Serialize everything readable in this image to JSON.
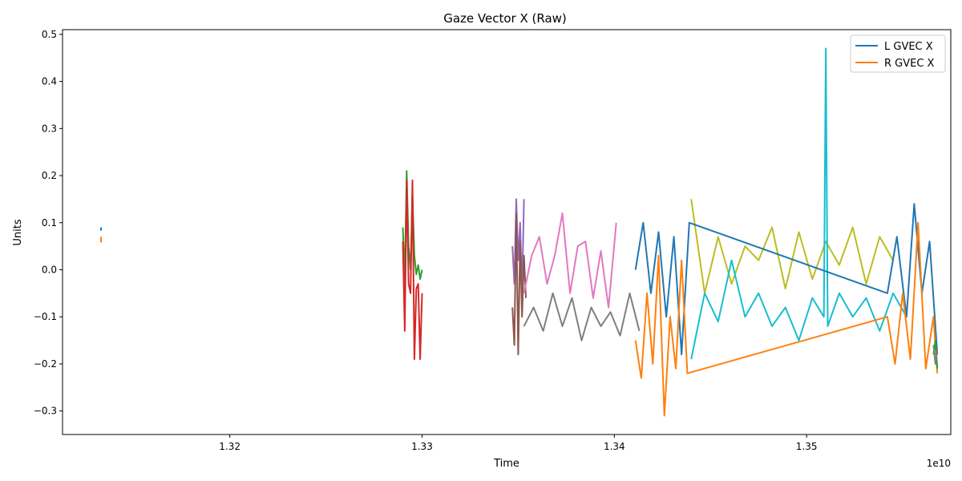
{
  "chart_data": {
    "type": "line",
    "title": "Gaze Vector X (Raw)",
    "xlabel": "Time",
    "ylabel": "Units",
    "x_offset_label": "1e10",
    "xlim": [
      1.3113,
      1.3575
    ],
    "ylim": [
      -0.35,
      0.51
    ],
    "xticks": [
      1.32,
      1.33,
      1.34,
      1.35
    ],
    "xtick_labels": [
      "1.32",
      "1.33",
      "1.34",
      "1.35"
    ],
    "yticks": [
      -0.3,
      -0.2,
      -0.1,
      0.0,
      0.1,
      0.2,
      0.3,
      0.4,
      0.5
    ],
    "ytick_labels": [
      "−0.3",
      "−0.2",
      "−0.1",
      "0.0",
      "0.1",
      "0.2",
      "0.3",
      "0.4",
      "0.5"
    ],
    "grid": false,
    "legend_position": "top-right",
    "legend": [
      {
        "name": "L GVEC X",
        "color": "#1f77b4"
      },
      {
        "name": "R GVEC X",
        "color": "#ff7f0e"
      }
    ],
    "series": [
      {
        "color": "#1f77b4",
        "x": [
          1.3133,
          1.3133
        ],
        "y": [
          0.083,
          0.09
        ]
      },
      {
        "color": "#ff7f0e",
        "x": [
          1.3133,
          1.3133
        ],
        "y": [
          0.058,
          0.07
        ]
      },
      {
        "color": "#2ca02c",
        "x": [
          1.329,
          1.3291,
          1.3292,
          1.3293,
          1.3294,
          1.3295,
          1.3296,
          1.3297,
          1.3298,
          1.3299,
          1.33
        ],
        "y": [
          0.09,
          -0.02,
          0.21,
          0.05,
          0.0,
          0.16,
          0.03,
          -0.01,
          0.01,
          -0.02,
          0.0
        ]
      },
      {
        "color": "#d62728",
        "x": [
          1.329,
          1.3291,
          1.3292,
          1.3293,
          1.3294,
          1.3295,
          1.3296,
          1.3297,
          1.3298,
          1.3299,
          1.33
        ],
        "y": [
          0.06,
          -0.13,
          0.19,
          -0.03,
          -0.05,
          0.19,
          -0.19,
          -0.04,
          -0.03,
          -0.19,
          -0.05
        ]
      },
      {
        "color": "#9467bd",
        "x": [
          1.3347,
          1.3348,
          1.3349,
          1.335,
          1.3351,
          1.3352,
          1.3353
        ],
        "y": [
          0.05,
          -0.03,
          0.15,
          0.02,
          0.1,
          -0.05,
          0.15
        ]
      },
      {
        "color": "#8c564b",
        "x": [
          1.3347,
          1.3348,
          1.3349,
          1.335,
          1.3351,
          1.3352,
          1.3353,
          1.3354
        ],
        "y": [
          -0.08,
          -0.16,
          0.12,
          -0.18,
          0.06,
          -0.1,
          0.03,
          -0.06
        ]
      },
      {
        "color": "#e377c2",
        "x": [
          1.3353,
          1.3357,
          1.3361,
          1.3365,
          1.3369,
          1.3373,
          1.3377,
          1.3381,
          1.3385,
          1.3389,
          1.3393,
          1.3397,
          1.3401
        ],
        "y": [
          -0.05,
          0.03,
          0.07,
          -0.03,
          0.03,
          0.12,
          -0.05,
          0.05,
          0.06,
          -0.06,
          0.04,
          -0.08,
          0.1
        ]
      },
      {
        "color": "#7f7f7f",
        "x": [
          1.3353,
          1.3358,
          1.3363,
          1.3368,
          1.3373,
          1.3378,
          1.3383,
          1.3388,
          1.3393,
          1.3398,
          1.3403,
          1.3408,
          1.3413
        ],
        "y": [
          -0.12,
          -0.08,
          -0.13,
          -0.05,
          -0.12,
          -0.06,
          -0.15,
          -0.08,
          -0.12,
          -0.09,
          -0.14,
          -0.05,
          -0.13
        ]
      },
      {
        "color": "#bcbd22",
        "x": [
          1.344,
          1.3447,
          1.3454,
          1.3461,
          1.3468,
          1.3475,
          1.3482,
          1.3489,
          1.3496,
          1.3503,
          1.351,
          1.3517,
          1.3524,
          1.3531,
          1.3538,
          1.3545
        ],
        "y": [
          0.15,
          -0.05,
          0.07,
          -0.03,
          0.05,
          0.02,
          0.09,
          -0.04,
          0.08,
          -0.02,
          0.06,
          0.01,
          0.09,
          -0.03,
          0.07,
          0.02
        ]
      },
      {
        "color": "#17becf",
        "x": [
          1.344,
          1.3447,
          1.3454,
          1.3461,
          1.3468,
          1.3475,
          1.3482,
          1.3489,
          1.3496,
          1.3503,
          1.3509,
          1.351,
          1.3511,
          1.3517,
          1.3524,
          1.3531,
          1.3538,
          1.3545,
          1.3552
        ],
        "y": [
          -0.19,
          -0.05,
          -0.11,
          0.02,
          -0.1,
          -0.05,
          -0.12,
          -0.08,
          -0.15,
          -0.06,
          -0.1,
          0.47,
          -0.12,
          -0.05,
          -0.1,
          -0.06,
          -0.13,
          -0.05,
          -0.1
        ]
      },
      {
        "color": "#1f77b4",
        "x": [
          1.3411,
          1.3415,
          1.3419,
          1.3423,
          1.3427,
          1.3431,
          1.3435,
          1.3439,
          1.3542,
          1.3547,
          1.3552,
          1.3556,
          1.356,
          1.3564,
          1.3568
        ],
        "y": [
          0.0,
          0.1,
          -0.05,
          0.08,
          -0.1,
          0.07,
          -0.18,
          0.1,
          -0.05,
          0.07,
          -0.1,
          0.14,
          -0.05,
          0.06,
          -0.18
        ]
      },
      {
        "color": "#ff7f0e",
        "x": [
          1.3411,
          1.3414,
          1.3417,
          1.342,
          1.3423,
          1.3426,
          1.3429,
          1.3432,
          1.3435,
          1.3438,
          1.3542,
          1.3546,
          1.355,
          1.3554,
          1.3558,
          1.3562,
          1.3566,
          1.3568
        ],
        "y": [
          -0.15,
          -0.23,
          -0.05,
          -0.2,
          0.03,
          -0.31,
          -0.1,
          -0.21,
          0.02,
          -0.22,
          -0.1,
          -0.2,
          -0.05,
          -0.19,
          0.1,
          -0.21,
          -0.1,
          -0.22
        ]
      },
      {
        "color": "#2ca02c",
        "x": [
          1.3566,
          1.3567,
          1.3568
        ],
        "y": [
          -0.18,
          -0.15,
          -0.21
        ]
      },
      {
        "color": "#7f7f7f",
        "x": [
          1.3566,
          1.3567,
          1.3568
        ],
        "y": [
          -0.16,
          -0.2,
          -0.17
        ]
      }
    ]
  }
}
